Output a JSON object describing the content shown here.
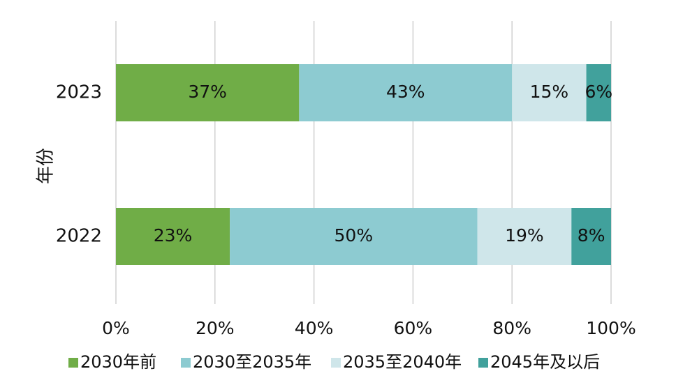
{
  "chart_data": {
    "type": "bar",
    "orientation": "horizontal",
    "stacked": true,
    "ylabel": "年份",
    "categories": [
      "2023",
      "2022"
    ],
    "series": [
      {
        "name": "2030年前",
        "color": "#70ad47",
        "values": [
          37,
          23
        ]
      },
      {
        "name": "2030至2035年",
        "color": "#8dcbd1",
        "values": [
          43,
          50
        ]
      },
      {
        "name": "2035至2040年",
        "color": "#cfe6ea",
        "values": [
          15,
          19
        ]
      },
      {
        "name": "2045年及以后",
        "color": "#41a19c",
        "values": [
          6,
          8
        ]
      }
    ],
    "data_labels": [
      [
        "37%",
        "23%"
      ],
      [
        "43%",
        "50%"
      ],
      [
        "15%",
        "19%"
      ],
      [
        "6%",
        "8%"
      ]
    ],
    "x_ticks": [
      "0%",
      "20%",
      "40%",
      "60%",
      "80%",
      "100%"
    ],
    "xlim": [
      0,
      100
    ],
    "grid": true,
    "legend_position": "bottom"
  }
}
